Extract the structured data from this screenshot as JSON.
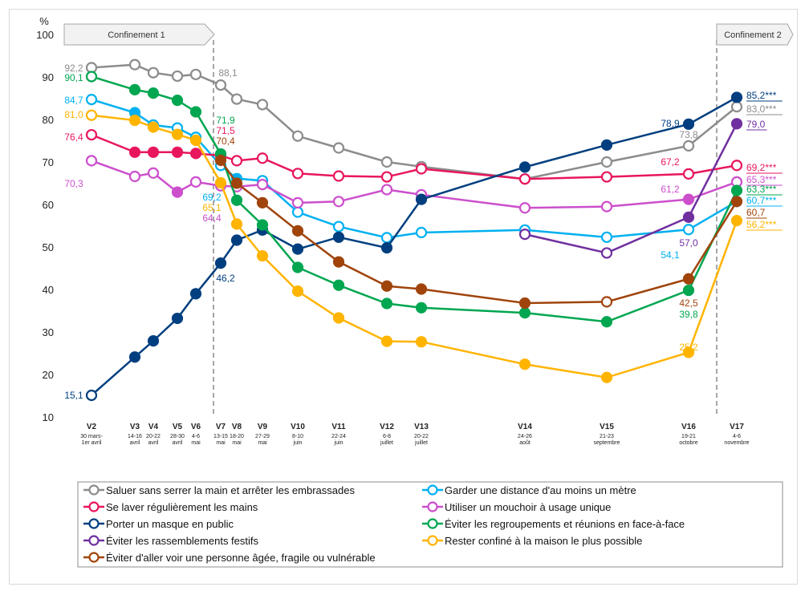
{
  "chart_data": {
    "type": "line",
    "ylabel": "%",
    "ylim": [
      10,
      100
    ],
    "yticks": [
      "10",
      "20",
      "30",
      "40",
      "50",
      "60",
      "70",
      "80",
      "90",
      "100"
    ],
    "grid": false,
    "legend_position": "bottom",
    "banners": [
      "Confinement 1",
      "Confinement 2"
    ],
    "waves": [
      {
        "id": "V2",
        "date": [
          "30 mars-",
          "1er avril"
        ]
      },
      {
        "id": "V3",
        "date": [
          "14-16",
          "avril"
        ]
      },
      {
        "id": "V4",
        "date": [
          "20-22",
          "avril"
        ]
      },
      {
        "id": "V5",
        "date": [
          "28-30",
          "avril"
        ]
      },
      {
        "id": "V6",
        "date": [
          "4-6",
          "mai"
        ]
      },
      {
        "id": "V7",
        "date": [
          "13-15",
          "mai"
        ]
      },
      {
        "id": "V8",
        "date": [
          "18-20",
          "mai"
        ]
      },
      {
        "id": "V9",
        "date": [
          "27-29",
          "mai"
        ]
      },
      {
        "id": "V10",
        "date": [
          "8-10",
          "juin"
        ]
      },
      {
        "id": "V11",
        "date": [
          "22-24",
          "juin"
        ]
      },
      {
        "id": "V12",
        "date": [
          "6-8",
          "juillet"
        ]
      },
      {
        "id": "V13",
        "date": [
          "20-22",
          "juillet"
        ]
      },
      {
        "id": "V14",
        "date": [
          "24-26",
          "août"
        ]
      },
      {
        "id": "V15",
        "date": [
          "21-23",
          "septembre"
        ]
      },
      {
        "id": "V16",
        "date": [
          "19-21",
          "octobre"
        ]
      },
      {
        "id": "V17",
        "date": [
          "4-6",
          "novembre"
        ]
      }
    ],
    "series": [
      {
        "name": "Saluer sans serrer la main et arrêter les embrassades",
        "color": "#8c8c8c",
        "values": [
          92.2,
          92.9,
          91.0,
          90.2,
          90.6,
          88.1,
          84.8,
          83.5,
          76.1,
          73.3,
          70.0,
          68.9,
          66.0,
          70.0,
          73.8,
          83.0
        ],
        "labels": [
          {
            "i": 0,
            "text": "92,2"
          },
          {
            "i": 5,
            "text": "88,1"
          },
          {
            "i": 14,
            "text": "73,8"
          },
          {
            "i": 15,
            "text": "83,0***"
          }
        ]
      },
      {
        "name": "Garder une distance d'au moins un mètre",
        "color": "#00b0f0",
        "values": [
          84.7,
          81.6,
          78.7,
          78.0,
          75.8,
          69.2,
          66.1,
          65.6,
          58.2,
          54.8,
          52.2,
          53.4,
          54.0,
          52.3,
          54.1,
          60.7
        ],
        "labels": [
          {
            "i": 0,
            "text": "84,7"
          },
          {
            "i": 5,
            "text": "69,2"
          },
          {
            "i": 14,
            "text": "54,1"
          },
          {
            "i": 15,
            "text": "60,7***"
          }
        ]
      },
      {
        "name": "Se laver régulièrement les mains",
        "color": "#e8175d",
        "values": [
          76.4,
          72.3,
          72.3,
          72.3,
          72.0,
          71.5,
          70.3,
          70.9,
          67.3,
          66.7,
          66.5,
          68.4,
          66.0,
          66.5,
          67.2,
          69.2
        ],
        "labels": [
          {
            "i": 0,
            "text": "76,4"
          },
          {
            "i": 5,
            "text": "71,5"
          },
          {
            "i": 14,
            "text": "67,2"
          },
          {
            "i": 15,
            "text": "69,2***"
          }
        ]
      },
      {
        "name": "Utiliser un mouchoir à usage unique",
        "color": "#cc4fcc",
        "values": [
          70.3,
          66.6,
          67.4,
          62.9,
          65.3,
          64.4,
          64.2,
          64.7,
          60.4,
          60.7,
          63.5,
          62.3,
          59.2,
          59.5,
          61.2,
          65.3
        ],
        "labels": [
          {
            "i": 0,
            "text": "70,3"
          },
          {
            "i": 5,
            "text": "64,4"
          },
          {
            "i": 14,
            "text": "61,2"
          },
          {
            "i": 15,
            "text": "65,3***"
          }
        ]
      },
      {
        "name": "Porter un masque en public",
        "color": "#003f7f",
        "values": [
          15.1,
          24.1,
          27.9,
          33.2,
          39.0,
          46.2,
          51.6,
          54.0,
          49.5,
          52.3,
          49.8,
          61.2,
          68.8,
          74.0,
          78.9,
          85.2
        ],
        "labels": [
          {
            "i": 0,
            "text": "15,1"
          },
          {
            "i": 5,
            "text": "46,2"
          },
          {
            "i": 14,
            "text": "78,9"
          },
          {
            "i": 15,
            "text": "85,2***"
          }
        ]
      },
      {
        "name": "Éviter les regroupements et réunions en face-à-face",
        "color": "#00a650",
        "values": [
          90.1,
          87.0,
          86.2,
          84.5,
          81.8,
          71.9,
          61.0,
          55.2,
          45.2,
          41.0,
          36.7,
          35.7,
          34.5,
          32.4,
          39.8,
          63.3
        ],
        "labels": [
          {
            "i": 0,
            "text": "90,1"
          },
          {
            "i": 5,
            "text": "71,9"
          },
          {
            "i": 14,
            "text": "39,8"
          },
          {
            "i": 15,
            "text": "63,3***"
          }
        ]
      },
      {
        "name": "Éviter les rassemblements festifs",
        "color": "#7030a0",
        "values": [
          null,
          null,
          null,
          null,
          null,
          null,
          null,
          null,
          null,
          null,
          null,
          null,
          53.0,
          48.6,
          57.0,
          79.0
        ],
        "labels": [
          {
            "i": 14,
            "text": "57,0"
          },
          {
            "i": 15,
            "text": "79,0"
          }
        ]
      },
      {
        "name": "Rester confiné à la maison le plus possible",
        "color": "#ffb400",
        "values": [
          81.0,
          79.8,
          78.2,
          76.5,
          75.1,
          65.1,
          55.4,
          47.9,
          39.6,
          33.3,
          27.8,
          27.7,
          22.4,
          19.3,
          25.2,
          56.2
        ],
        "labels": [
          {
            "i": 0,
            "text": "81,0"
          },
          {
            "i": 5,
            "text": "65,1"
          },
          {
            "i": 14,
            "text": "25,2"
          },
          {
            "i": 15,
            "text": "56,2***"
          }
        ]
      },
      {
        "name": "Éviter d'aller voir une personne âgée, fragile ou vulnérable",
        "color": "#a0440c",
        "values": [
          null,
          null,
          null,
          null,
          null,
          70.4,
          65.0,
          60.4,
          53.8,
          46.5,
          40.8,
          40.1,
          36.8,
          37.1,
          42.5,
          60.7
        ],
        "labels": [
          {
            "i": 5,
            "text": "70,4"
          },
          {
            "i": 14,
            "text": "42,5"
          },
          {
            "i": 15,
            "text": "60,7"
          }
        ]
      }
    ],
    "legend_order": [
      0,
      1,
      2,
      3,
      4,
      5,
      6,
      7,
      8
    ]
  }
}
